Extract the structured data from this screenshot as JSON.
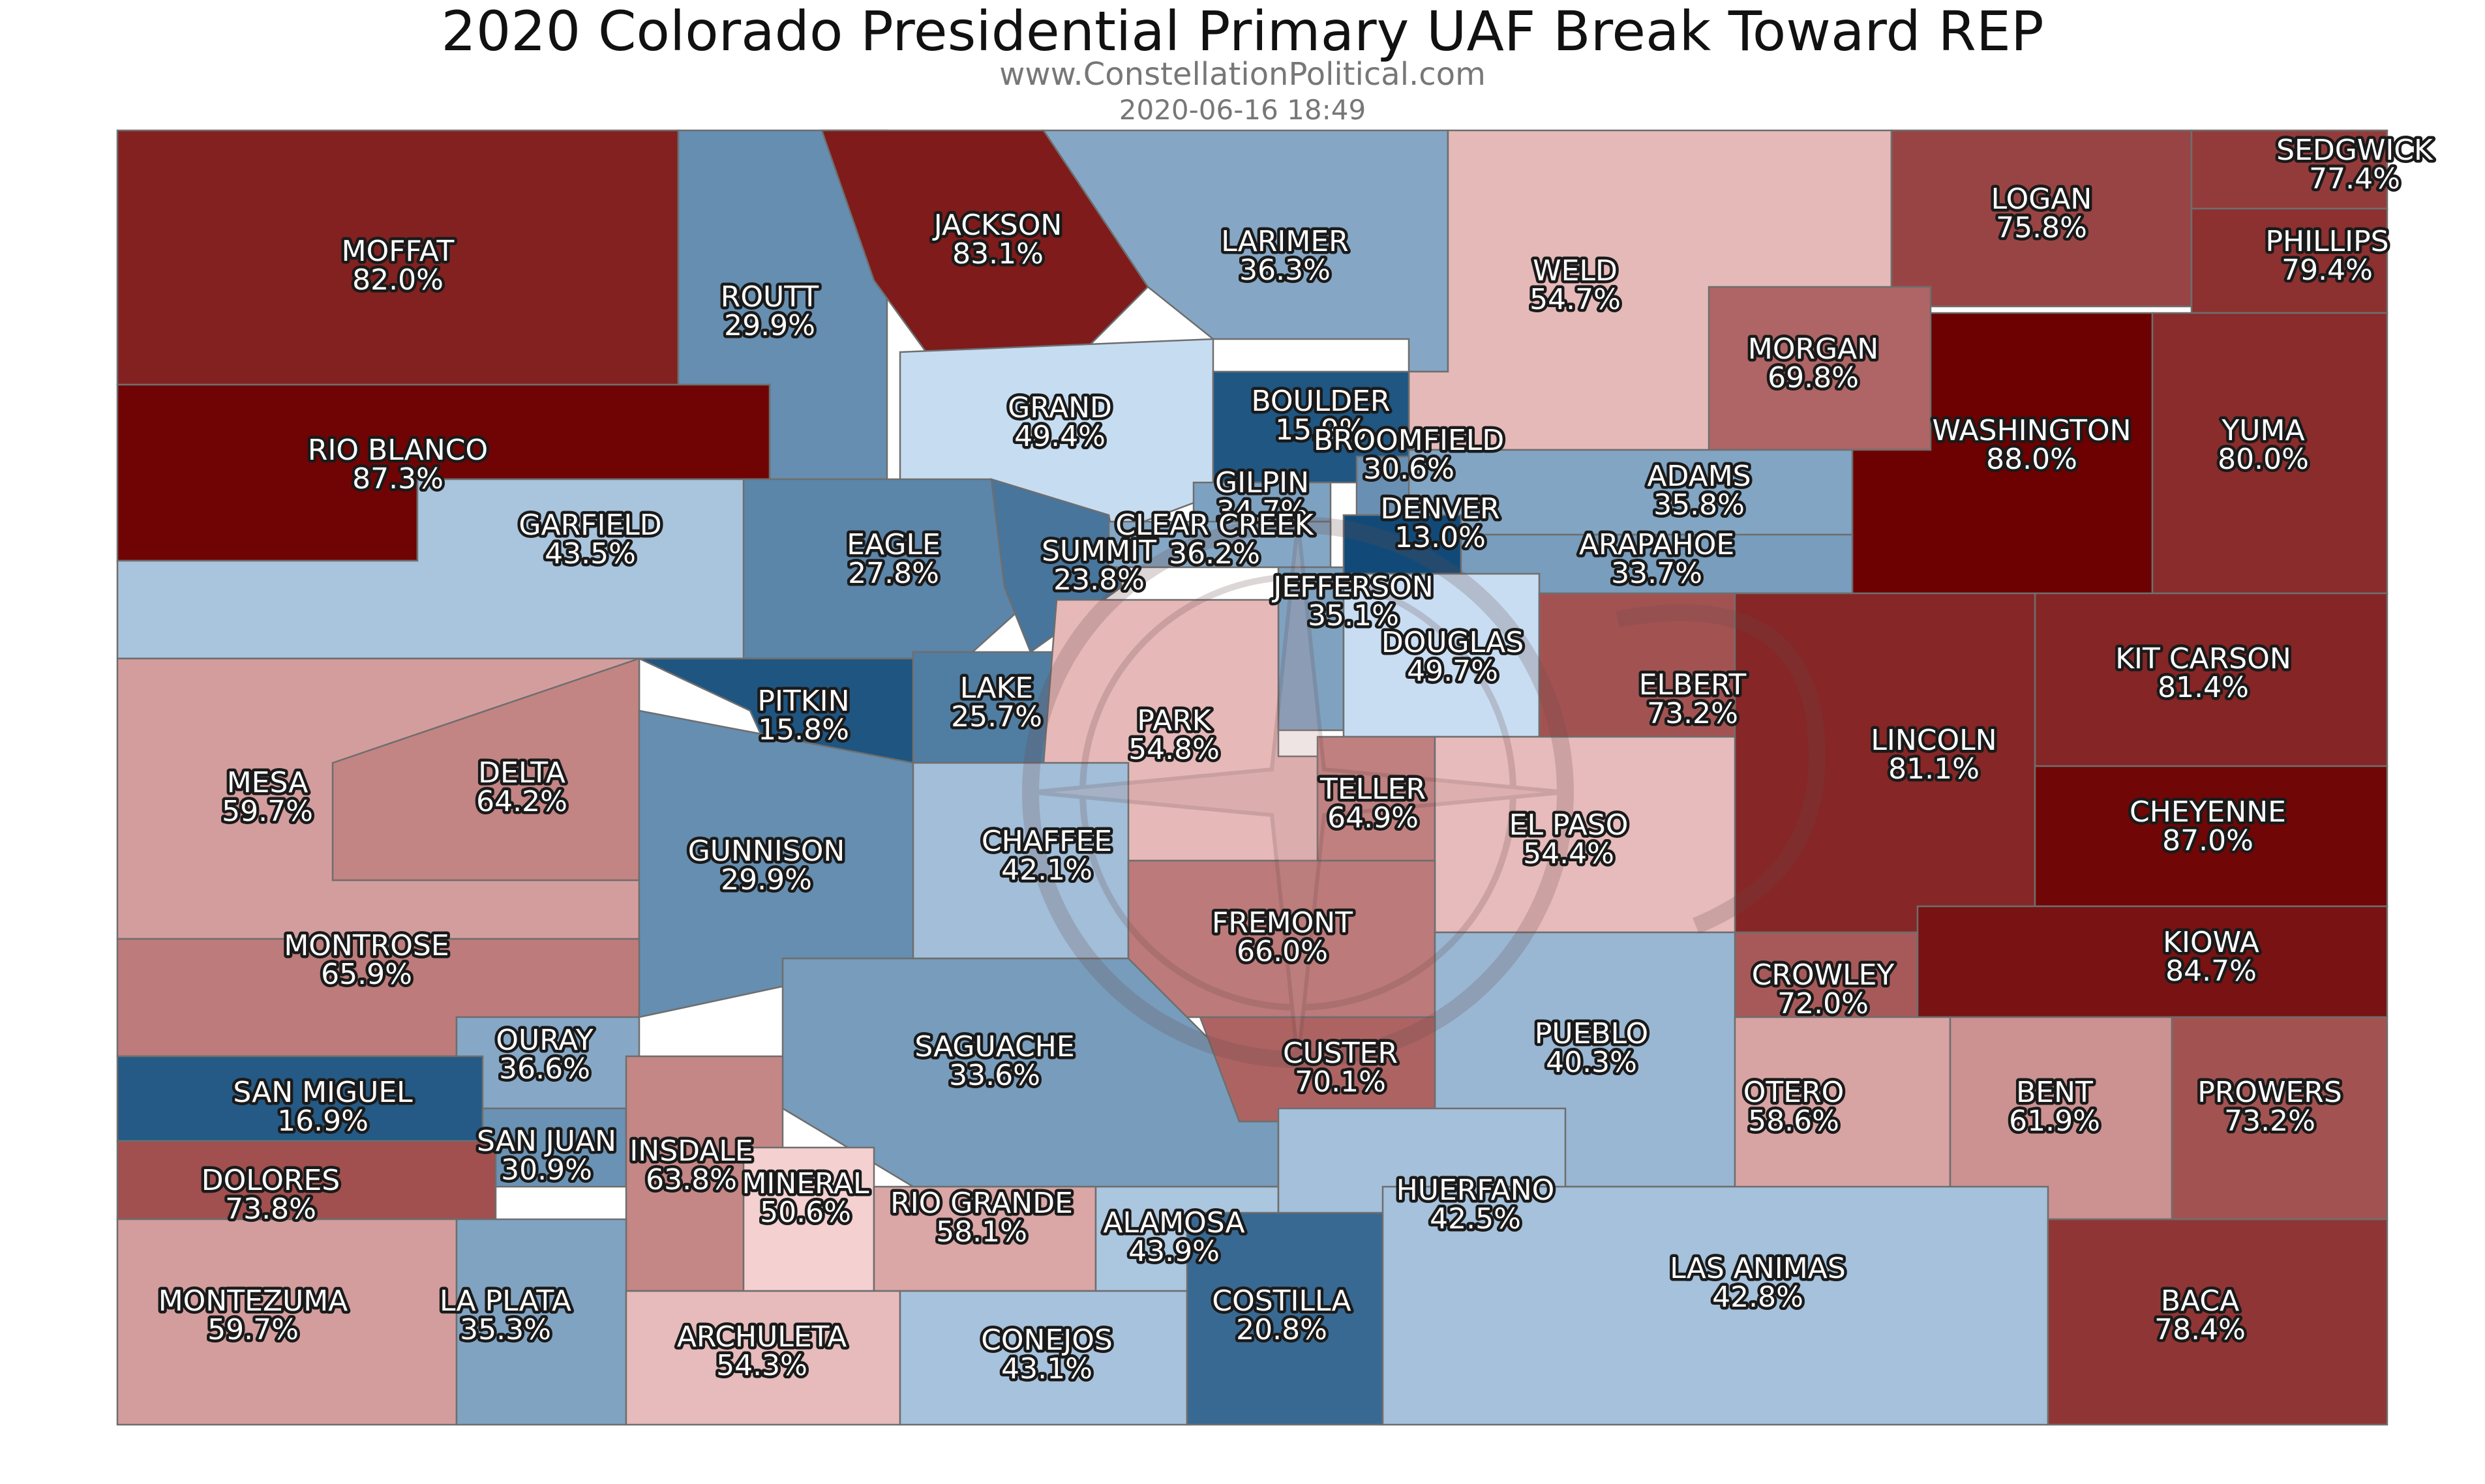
{
  "title": "2020 Colorado Presidential Primary UAF Break Toward REP",
  "website": "www.ConstellationPolitical.com",
  "timestamp": "2020-06-16 18:49",
  "color_scale": {
    "dem_dark": "#114a78",
    "dem_light": "#c9def3",
    "neutral": "#f7d3d3",
    "rep_dark": "#6d0000"
  },
  "counties": [
    {
      "name": "MOFFAT",
      "value": "82.0%",
      "pct": 82.0
    },
    {
      "name": "ROUTT",
      "value": "29.9%",
      "pct": 29.9
    },
    {
      "name": "JACKSON",
      "value": "83.1%",
      "pct": 83.1
    },
    {
      "name": "LARIMER",
      "value": "36.3%",
      "pct": 36.3
    },
    {
      "name": "WELD",
      "value": "54.7%",
      "pct": 54.7
    },
    {
      "name": "LOGAN",
      "value": "75.8%",
      "pct": 75.8
    },
    {
      "name": "SEDGWICK",
      "value": "77.4%",
      "pct": 77.4
    },
    {
      "name": "PHILLIPS",
      "value": "79.4%",
      "pct": 79.4
    },
    {
      "name": "RIO BLANCO",
      "value": "87.3%",
      "pct": 87.3
    },
    {
      "name": "GARFIELD",
      "value": "43.5%",
      "pct": 43.5
    },
    {
      "name": "GRAND",
      "value": "49.4%",
      "pct": 49.4
    },
    {
      "name": "BOULDER",
      "value": "15.9%",
      "pct": 15.9
    },
    {
      "name": "BROOMFIELD",
      "value": "30.6%",
      "pct": 30.6
    },
    {
      "name": "MORGAN",
      "value": "69.8%",
      "pct": 69.8
    },
    {
      "name": "WASHINGTON",
      "value": "88.0%",
      "pct": 88.0
    },
    {
      "name": "YUMA",
      "value": "80.0%",
      "pct": 80.0
    },
    {
      "name": "GILPIN",
      "value": "34.7%",
      "pct": 34.7
    },
    {
      "name": "ADAMS",
      "value": "35.8%",
      "pct": 35.8
    },
    {
      "name": "EAGLE",
      "value": "27.8%",
      "pct": 27.8
    },
    {
      "name": "SUMMIT",
      "value": "23.8%",
      "pct": 23.8
    },
    {
      "name": "CLEAR CREEK",
      "value": "36.2%",
      "pct": 36.2
    },
    {
      "name": "DENVER",
      "value": "13.0%",
      "pct": 13.0
    },
    {
      "name": "ARAPAHOE",
      "value": "33.7%",
      "pct": 33.7
    },
    {
      "name": "JEFFERSON",
      "value": "35.1%",
      "pct": 35.1
    },
    {
      "name": "DOUGLAS",
      "value": "49.7%",
      "pct": 49.7
    },
    {
      "name": "ELBERT",
      "value": "73.2%",
      "pct": 73.2
    },
    {
      "name": "KIT CARSON",
      "value": "81.4%",
      "pct": 81.4
    },
    {
      "name": "LINCOLN",
      "value": "81.1%",
      "pct": 81.1
    },
    {
      "name": "PITKIN",
      "value": "15.8%",
      "pct": 15.8
    },
    {
      "name": "LAKE",
      "value": "25.7%",
      "pct": 25.7
    },
    {
      "name": "PARK",
      "value": "54.8%",
      "pct": 54.8
    },
    {
      "name": "MESA",
      "value": "59.7%",
      "pct": 59.7
    },
    {
      "name": "DELTA",
      "value": "64.2%",
      "pct": 64.2
    },
    {
      "name": "TELLER",
      "value": "64.9%",
      "pct": 64.9
    },
    {
      "name": "EL PASO",
      "value": "54.4%",
      "pct": 54.4
    },
    {
      "name": "CHEYENNE",
      "value": "87.0%",
      "pct": 87.0
    },
    {
      "name": "GUNNISON",
      "value": "29.9%",
      "pct": 29.9
    },
    {
      "name": "CHAFFEE",
      "value": "42.1%",
      "pct": 42.1
    },
    {
      "name": "FREMONT",
      "value": "66.0%",
      "pct": 66.0
    },
    {
      "name": "KIOWA",
      "value": "84.7%",
      "pct": 84.7
    },
    {
      "name": "MONTROSE",
      "value": "65.9%",
      "pct": 65.9
    },
    {
      "name": "CROWLEY",
      "value": "72.0%",
      "pct": 72.0
    },
    {
      "name": "OURAY",
      "value": "36.6%",
      "pct": 36.6
    },
    {
      "name": "SAGUACHE",
      "value": "33.6%",
      "pct": 33.6
    },
    {
      "name": "PUEBLO",
      "value": "40.3%",
      "pct": 40.3
    },
    {
      "name": "CUSTER",
      "value": "70.1%",
      "pct": 70.1
    },
    {
      "name": "OTERO",
      "value": "58.6%",
      "pct": 58.6
    },
    {
      "name": "BENT",
      "value": "61.9%",
      "pct": 61.9
    },
    {
      "name": "PROWERS",
      "value": "73.2%",
      "pct": 73.2
    },
    {
      "name": "SAN MIGUEL",
      "value": "16.9%",
      "pct": 16.9
    },
    {
      "name": "SAN JUAN",
      "value": "30.9%",
      "pct": 30.9
    },
    {
      "name": "HINSDALE",
      "label": "INSDALE",
      "value": "63.8%",
      "pct": 63.8
    },
    {
      "name": "MINERAL",
      "value": "50.6%",
      "pct": 50.6
    },
    {
      "name": "RIO GRANDE",
      "value": "58.1%",
      "pct": 58.1
    },
    {
      "name": "DOLORES",
      "value": "73.8%",
      "pct": 73.8
    },
    {
      "name": "ALAMOSA",
      "value": "43.9%",
      "pct": 43.9
    },
    {
      "name": "HUERFANO",
      "value": "42.5%",
      "pct": 42.5
    },
    {
      "name": "MONTEZUMA",
      "value": "59.7%",
      "pct": 59.7
    },
    {
      "name": "LA PLATA",
      "value": "35.3%",
      "pct": 35.3
    },
    {
      "name": "ARCHULETA",
      "value": "54.3%",
      "pct": 54.3
    },
    {
      "name": "CONEJOS",
      "label": "CONEJOS",
      "value": "43.1%",
      "pct": 43.1
    },
    {
      "name": "COSTILLA",
      "value": "20.8%",
      "pct": 20.8
    },
    {
      "name": "LAS ANIMAS",
      "value": "42.8%",
      "pct": 42.8
    },
    {
      "name": "BACA",
      "value": "78.4%",
      "pct": 78.4
    }
  ]
}
